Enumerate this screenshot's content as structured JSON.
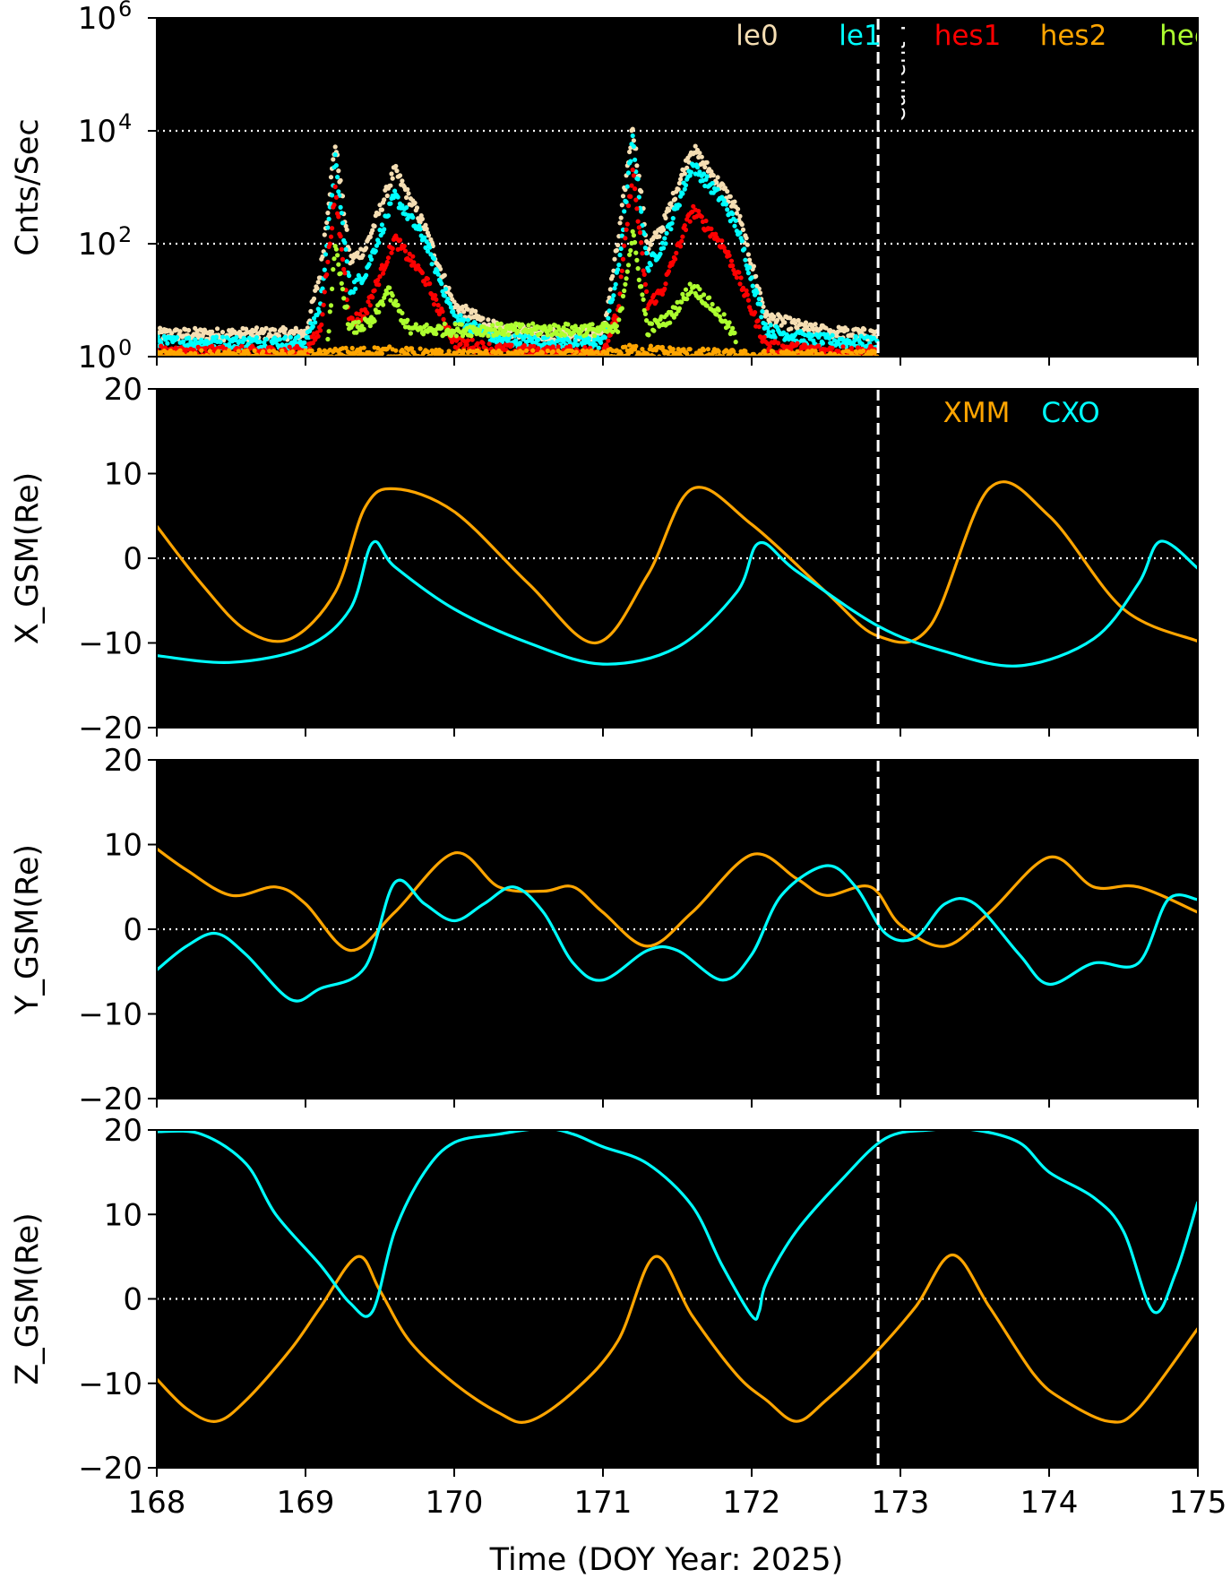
{
  "colors": {
    "le0": "#f5deb3",
    "le1": "#00ffff",
    "hes1": "#ff0000",
    "hes2": "#ffa500",
    "hec": "#adff2f",
    "xmm": "#ffa500",
    "cxo": "#00ffff",
    "background": "#000000",
    "marker_line": "#ffffff"
  },
  "chart_data": [
    {
      "type": "scatter",
      "ylabel": "Cnts/Sec",
      "yscale": "log",
      "ylim": [
        1,
        1000000
      ],
      "xlim": [
        168,
        175
      ],
      "y_ticks": [
        {
          "value": 1,
          "base": "10",
          "exp": "0"
        },
        {
          "value": 100,
          "base": "10",
          "exp": "2"
        },
        {
          "value": 10000,
          "base": "10",
          "exp": "4"
        },
        {
          "value": 1000000,
          "base": "10",
          "exp": "6"
        }
      ],
      "gridlines_y": [
        100,
        10000
      ],
      "legend": [
        "le0",
        "le1",
        "hes1",
        "hes2",
        "hec"
      ],
      "legend_placement": "top",
      "annotation": {
        "label": "Current T",
        "x": 172.85
      },
      "series": [
        {
          "name": "le0",
          "x": [
            168.0,
            168.5,
            169.0,
            169.1,
            169.2,
            169.3,
            169.4,
            169.6,
            169.8,
            170.0,
            170.3,
            170.6,
            171.0,
            171.1,
            171.2,
            171.3,
            171.4,
            171.6,
            171.8,
            171.9,
            172.1,
            172.4,
            172.7,
            172.85
          ],
          "y": [
            2.5,
            2.5,
            2.6,
            30,
            6000,
            50,
            80,
            2000,
            200,
            8,
            3,
            2.5,
            2.5,
            100,
            12000,
            80,
            200,
            5000,
            1000,
            400,
            5,
            3,
            2.5,
            2.5
          ]
        },
        {
          "name": "le1",
          "x": [
            168.0,
            168.5,
            169.0,
            169.1,
            169.2,
            169.3,
            169.4,
            169.6,
            169.8,
            170.0,
            170.3,
            170.6,
            171.0,
            171.1,
            171.2,
            171.3,
            171.4,
            171.6,
            171.8,
            171.9,
            172.1,
            172.4,
            172.7,
            172.85
          ],
          "y": [
            1.8,
            1.8,
            1.8,
            8,
            3000,
            15,
            30,
            700,
            120,
            5,
            2,
            1.8,
            1.8,
            30,
            7000,
            40,
            90,
            2500,
            600,
            200,
            3,
            2,
            1.8,
            1.8
          ]
        },
        {
          "name": "hes1",
          "x": [
            168.0,
            168.5,
            169.0,
            169.1,
            169.2,
            169.3,
            169.4,
            169.6,
            169.8,
            170.0,
            170.3,
            170.6,
            171.0,
            171.1,
            171.2,
            171.3,
            171.4,
            171.6,
            171.8,
            171.9,
            172.1,
            172.4,
            172.7,
            172.85
          ],
          "y": [
            1.2,
            1.2,
            1.2,
            3,
            800,
            4,
            6,
            120,
            25,
            1.8,
            1.3,
            1.2,
            1.2,
            6,
            2000,
            8,
            15,
            400,
            100,
            30,
            1.5,
            1.3,
            1.2,
            1.2
          ]
        },
        {
          "name": "hes2",
          "x": [
            168.0,
            168.5,
            169.0,
            169.2,
            169.5,
            170.0,
            171.0,
            171.2,
            171.6,
            172.0,
            172.5,
            172.85
          ],
          "y": [
            1,
            1,
            1,
            1.1,
            1.2,
            1,
            1,
            1.3,
            1.1,
            1,
            1,
            1
          ]
        },
        {
          "name": "hec",
          "x": [
            169.15,
            169.2,
            169.3,
            169.45,
            169.55,
            169.7,
            171.1,
            171.2,
            171.3,
            171.45,
            171.6,
            171.8,
            171.9
          ],
          "y": [
            2,
            80,
            3,
            4,
            15,
            3,
            3,
            150,
            3,
            5,
            18,
            5,
            2
          ]
        }
      ]
    },
    {
      "type": "line",
      "ylabel": "X_GSM(Re)",
      "ylim": [
        -20,
        20
      ],
      "xlim": [
        168,
        175
      ],
      "y_ticks": [
        -20,
        -10,
        0,
        10,
        20
      ],
      "gridlines_y": [
        0
      ],
      "legend": [
        "XMM",
        "CXO"
      ],
      "legend_placement": "top-right",
      "annotation_x": 172.85,
      "series": [
        {
          "name": "XMM",
          "x": [
            168.0,
            168.3,
            168.6,
            168.9,
            169.2,
            169.4,
            169.6,
            170.0,
            170.5,
            170.95,
            171.3,
            171.6,
            172.0,
            172.5,
            172.85,
            173.2,
            173.6,
            174.0,
            174.5,
            175.0
          ],
          "y": [
            3.8,
            -3,
            -8.5,
            -9.5,
            -4,
            6,
            8.2,
            5.5,
            -3,
            -10,
            -2,
            8.2,
            4,
            -4,
            -9.2,
            -8,
            8.3,
            5,
            -6,
            -9.8
          ]
        },
        {
          "name": "CXO",
          "x": [
            168.0,
            168.5,
            169.0,
            169.3,
            169.45,
            169.6,
            170.0,
            170.5,
            171.0,
            171.5,
            171.9,
            172.05,
            172.3,
            172.85,
            173.3,
            173.8,
            174.3,
            174.6,
            174.75,
            175.0
          ],
          "y": [
            -11.5,
            -12.3,
            -10.5,
            -6,
            1.8,
            -1,
            -6,
            -10,
            -12.5,
            -10.5,
            -4,
            1.8,
            -1.5,
            -8,
            -11,
            -12.7,
            -9.5,
            -3,
            2,
            -1.2
          ]
        }
      ]
    },
    {
      "type": "line",
      "ylabel": "Y_GSM(Re)",
      "ylim": [
        -20,
        20
      ],
      "xlim": [
        168,
        175
      ],
      "y_ticks": [
        -20,
        -10,
        0,
        10,
        20
      ],
      "gridlines_y": [
        0
      ],
      "annotation_x": 172.85,
      "series": [
        {
          "name": "XMM",
          "x": [
            168.0,
            168.2,
            168.5,
            168.8,
            169.0,
            169.3,
            169.6,
            170.0,
            170.3,
            170.6,
            170.8,
            171.0,
            171.3,
            171.6,
            172.0,
            172.3,
            172.5,
            172.8,
            173.0,
            173.3,
            173.6,
            174.0,
            174.3,
            174.6,
            175.0
          ],
          "y": [
            9.5,
            7,
            4,
            5,
            3,
            -2.5,
            2,
            9,
            5,
            4.5,
            5,
            2,
            -2,
            2,
            8.8,
            6,
            4,
            5,
            0.5,
            -2,
            2,
            8.5,
            5,
            5,
            2
          ]
        },
        {
          "name": "CXO",
          "x": [
            168.0,
            168.2,
            168.4,
            168.6,
            168.9,
            169.1,
            169.4,
            169.6,
            169.8,
            170.0,
            170.2,
            170.4,
            170.6,
            170.8,
            171.0,
            171.3,
            171.5,
            171.8,
            172.0,
            172.2,
            172.5,
            172.7,
            172.9,
            173.1,
            173.3,
            173.5,
            173.8,
            174.0,
            174.3,
            174.6,
            174.8,
            175.0
          ],
          "y": [
            -4.8,
            -2,
            -0.5,
            -3,
            -8.3,
            -7,
            -4.5,
            5.5,
            3,
            1,
            3,
            5,
            2,
            -4,
            -6,
            -2.5,
            -2.5,
            -6,
            -3,
            4,
            7.5,
            5,
            -0.5,
            -1,
            3,
            3,
            -3,
            -6.5,
            -4,
            -4,
            3.5,
            3.5
          ]
        }
      ]
    },
    {
      "type": "line",
      "ylabel": "Z_GSM(Re)",
      "ylim": [
        -20,
        20
      ],
      "xlim": [
        168,
        175
      ],
      "y_ticks": [
        -20,
        -10,
        0,
        10,
        20
      ],
      "gridlines_y": [
        0
      ],
      "annotation_x": 172.85,
      "series": [
        {
          "name": "XMM",
          "x": [
            168.0,
            168.2,
            168.4,
            168.6,
            168.9,
            169.1,
            169.35,
            169.5,
            169.7,
            170.0,
            170.3,
            170.5,
            170.8,
            171.1,
            171.35,
            171.6,
            171.9,
            172.1,
            172.3,
            172.5,
            172.8,
            173.1,
            173.35,
            173.6,
            173.9,
            174.1,
            174.4,
            174.6,
            175.0
          ],
          "y": [
            -9.5,
            -13,
            -14.5,
            -12,
            -6,
            -1,
            5,
            1,
            -5,
            -10,
            -13.5,
            -14.5,
            -11,
            -5,
            5,
            -2,
            -9,
            -12,
            -14.5,
            -12,
            -7,
            -1,
            5.2,
            -1,
            -9,
            -12,
            -14.5,
            -13,
            -3.5
          ]
        },
        {
          "name": "CXO",
          "x": [
            168.0,
            168.3,
            168.6,
            168.8,
            169.1,
            169.3,
            169.45,
            169.6,
            169.8,
            170.0,
            170.3,
            170.6,
            170.8,
            171.0,
            171.3,
            171.6,
            171.8,
            172.0,
            172.05,
            172.1,
            172.3,
            172.6,
            172.9,
            173.2,
            173.5,
            173.8,
            174.0,
            174.3,
            174.5,
            174.7,
            174.85,
            175.0
          ],
          "y": [
            19.8,
            19.5,
            16,
            10,
            4,
            -0.5,
            -1.5,
            8,
            15,
            18.5,
            19.5,
            20.2,
            19.5,
            18,
            16,
            11,
            4,
            -2,
            -1.5,
            2,
            8,
            14,
            19,
            20,
            20,
            18.5,
            15,
            12,
            8,
            -1.5,
            3,
            11.5
          ]
        }
      ]
    }
  ],
  "x_axis": {
    "label": "Time (DOY Year: 2025)",
    "ticks": [
      "168",
      "169",
      "170",
      "171",
      "172",
      "173",
      "174",
      "175"
    ]
  }
}
